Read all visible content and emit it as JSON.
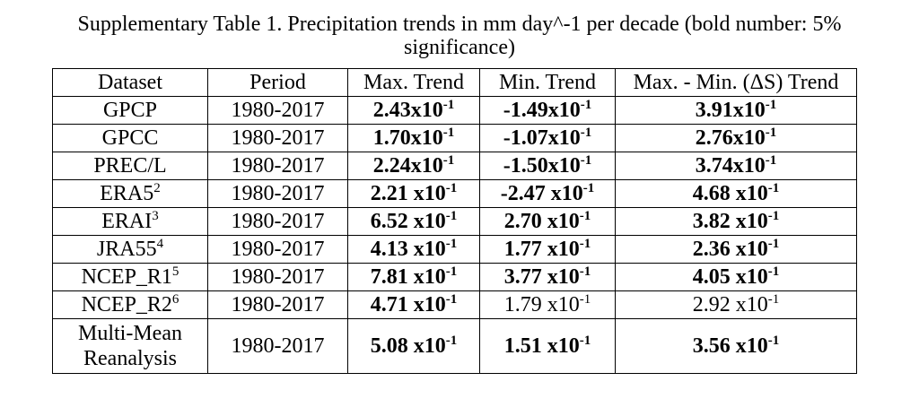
{
  "caption": {
    "line1": "Supplementary Table 1. Precipitation trends in mm day^-1 per decade (bold number: 5%",
    "line2": "significance)"
  },
  "table": {
    "headers": [
      "Dataset",
      "Period",
      "Max. Trend",
      "Min. Trend",
      "Max. - Min. (ΔS) Trend"
    ],
    "rows": [
      {
        "dataset": "GPCP",
        "sup": "",
        "period": "1980-2017",
        "max": {
          "mant": "2.43x10",
          "exp": "-1",
          "bold": true
        },
        "min": {
          "mant": "-1.49x10",
          "exp": "-1",
          "bold": true
        },
        "delta": {
          "mant": "3.91x10",
          "exp": "-1",
          "bold": true
        }
      },
      {
        "dataset": "GPCC",
        "sup": "",
        "period": "1980-2017",
        "max": {
          "mant": "1.70x10",
          "exp": "-1",
          "bold": true
        },
        "min": {
          "mant": "-1.07x10",
          "exp": "-1",
          "bold": true
        },
        "delta": {
          "mant": "2.76x10",
          "exp": "-1",
          "bold": true
        }
      },
      {
        "dataset": "PREC/L",
        "sup": "",
        "period": "1980-2017",
        "max": {
          "mant": "2.24x10",
          "exp": "-1",
          "bold": true
        },
        "min": {
          "mant": "-1.50x10",
          "exp": "-1",
          "bold": true
        },
        "delta": {
          "mant": "3.74x10",
          "exp": "-1",
          "bold": true
        }
      },
      {
        "dataset": "ERA5",
        "sup": "2",
        "period": "1980-2017",
        "max": {
          "mant": "2.21 x10",
          "exp": "-1",
          "bold": true
        },
        "min": {
          "mant": "-2.47 x10",
          "exp": "-1",
          "bold": true
        },
        "delta": {
          "mant": "4.68 x10",
          "exp": "-1",
          "bold": true
        }
      },
      {
        "dataset": "ERAI",
        "sup": "3",
        "period": "1980-2017",
        "max": {
          "mant": "6.52 x10",
          "exp": "-1",
          "bold": true
        },
        "min": {
          "mant": "2.70 x10",
          "exp": "-1",
          "bold": true
        },
        "delta": {
          "mant": "3.82 x10",
          "exp": "-1",
          "bold": true
        }
      },
      {
        "dataset": "JRA55",
        "sup": "4",
        "period": "1980-2017",
        "max": {
          "mant": "4.13 x10",
          "exp": "-1",
          "bold": true
        },
        "min": {
          "mant": "1.77 x10",
          "exp": "-1",
          "bold": true
        },
        "delta": {
          "mant": "2.36 x10",
          "exp": "-1",
          "bold": true
        }
      },
      {
        "dataset": "NCEP_R1",
        "sup": "5",
        "period": "1980-2017",
        "max": {
          "mant": "7.81 x10",
          "exp": "-1",
          "bold": true
        },
        "min": {
          "mant": "3.77 x10",
          "exp": "-1",
          "bold": true
        },
        "delta": {
          "mant": "4.05 x10",
          "exp": "-1",
          "bold": true
        }
      },
      {
        "dataset": "NCEP_R2",
        "sup": "6",
        "period": "1980-2017",
        "max": {
          "mant": "4.71 x10",
          "exp": "-1",
          "bold": true
        },
        "min": {
          "mant": "1.79 x10",
          "exp": "-1",
          "bold": false
        },
        "delta": {
          "mant": "2.92 x10",
          "exp": "-1",
          "bold": false
        }
      }
    ],
    "last_row": {
      "dataset_line1": "Multi-Mean",
      "dataset_line2": "Reanalysis",
      "period": "1980-2017",
      "max": {
        "mant": "5.08 x10",
        "exp": "-1",
        "bold": true
      },
      "min": {
        "mant": "1.51 x10",
        "exp": "-1",
        "bold": true
      },
      "delta": {
        "mant": "3.56 x10",
        "exp": "-1",
        "bold": true
      }
    }
  }
}
